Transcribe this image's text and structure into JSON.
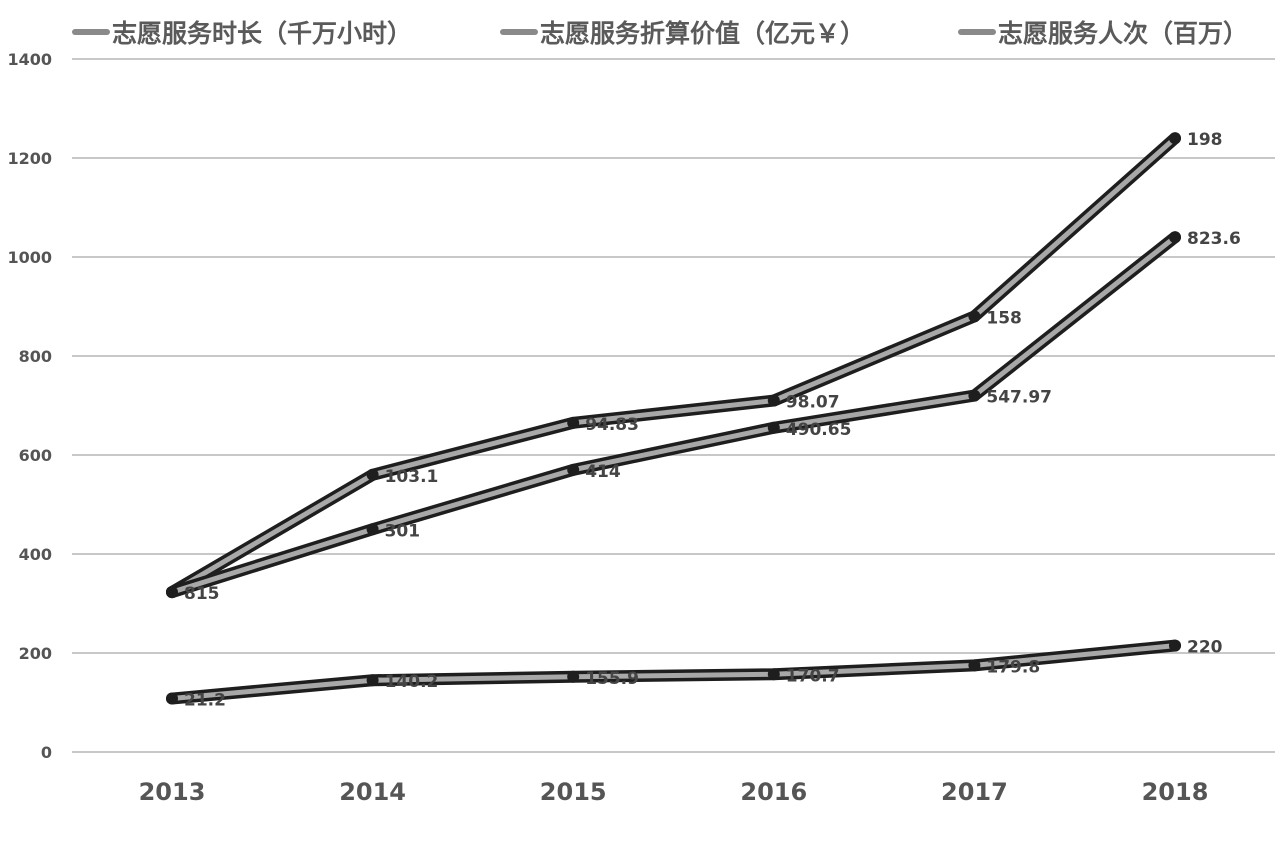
{
  "chart_data": {
    "type": "line",
    "title": "",
    "xlabel": "",
    "ylabel": "",
    "categories": [
      "2013",
      "2014",
      "2015",
      "2016",
      "2017",
      "2018"
    ],
    "ylim": [
      0,
      1400
    ],
    "yticks": [
      0,
      200,
      400,
      600,
      800,
      1000,
      1200,
      1400
    ],
    "grid": true,
    "legend_position": "top",
    "series": [
      {
        "name": "志愿服务时长（千万小时）",
        "values": [
          323,
          560,
          665,
          710,
          880,
          1240
        ],
        "labels": [
          "815",
          "103.1",
          "94.83",
          "98.07",
          "158",
          "198"
        ]
      },
      {
        "name": "志愿服务折算价值（亿元￥）",
        "values": [
          323,
          450,
          570,
          655,
          720,
          1040
        ],
        "labels": [
          "",
          "301",
          "414",
          "490.65",
          "547.97",
          "823.6"
        ]
      },
      {
        "name": "志愿服务人次（百万）",
        "values": [
          108,
          145,
          152,
          157,
          175,
          215
        ],
        "labels": [
          "21.2",
          "140.2",
          "155.9",
          "170.7",
          "179.8",
          "220"
        ]
      }
    ]
  }
}
